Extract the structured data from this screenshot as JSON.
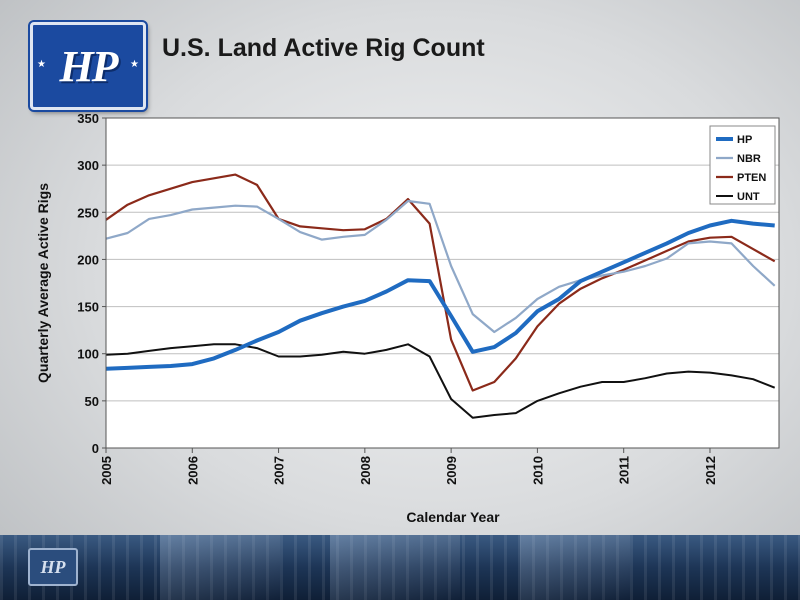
{
  "slide": {
    "title": "U.S. Land Active Rig Count",
    "logo_text": "HP"
  },
  "colors": {
    "HP": "#1f6bc1",
    "NBR": "#8fa8c8",
    "PTEN": "#8b2a1a",
    "UNT": "#111111"
  },
  "chart_data": {
    "type": "line",
    "xlabel": "Calendar Year",
    "ylabel": "Quarterly Average Active Rigs",
    "xlim": [
      2005,
      2012.8
    ],
    "ylim": [
      0,
      350
    ],
    "x_ticks": [
      "2005",
      "2006",
      "2007",
      "2008",
      "2009",
      "2010",
      "2011",
      "2012"
    ],
    "y_ticks": [
      "0",
      "50",
      "100",
      "150",
      "200",
      "250",
      "300",
      "350"
    ],
    "grid": "horizontal",
    "legend_position": "top-right",
    "x": [
      2005.0,
      2005.25,
      2005.5,
      2005.75,
      2006.0,
      2006.25,
      2006.5,
      2006.75,
      2007.0,
      2007.25,
      2007.5,
      2007.75,
      2008.0,
      2008.25,
      2008.5,
      2008.75,
      2009.0,
      2009.25,
      2009.5,
      2009.75,
      2010.0,
      2010.25,
      2010.5,
      2010.75,
      2011.0,
      2011.25,
      2011.5,
      2011.75,
      2012.0,
      2012.25,
      2012.5,
      2012.75
    ],
    "series": [
      {
        "name": "HP",
        "values": [
          84,
          85,
          86,
          87,
          89,
          95,
          104,
          114,
          123,
          135,
          143,
          150,
          156,
          166,
          178,
          177,
          140,
          102,
          107,
          122,
          145,
          158,
          177,
          187,
          197,
          207,
          217,
          228,
          236,
          241,
          238,
          236
        ]
      },
      {
        "name": "NBR",
        "values": [
          222,
          228,
          243,
          247,
          253,
          255,
          257,
          256,
          243,
          229,
          221,
          224,
          226,
          242,
          262,
          259,
          193,
          142,
          123,
          138,
          158,
          171,
          178,
          183,
          187,
          193,
          201,
          217,
          219,
          217,
          193,
          172
        ]
      },
      {
        "name": "PTEN",
        "values": [
          242,
          258,
          268,
          275,
          282,
          286,
          290,
          279,
          243,
          235,
          233,
          231,
          232,
          243,
          264,
          238,
          115,
          61,
          70,
          95,
          129,
          153,
          169,
          180,
          189,
          199,
          209,
          219,
          223,
          224,
          211,
          198
        ]
      },
      {
        "name": "UNT",
        "values": [
          99,
          100,
          103,
          106,
          108,
          110,
          110,
          106,
          97,
          97,
          99,
          102,
          100,
          104,
          110,
          97,
          52,
          32,
          35,
          37,
          50,
          58,
          65,
          70,
          70,
          74,
          79,
          81,
          80,
          77,
          73,
          64
        ]
      }
    ]
  }
}
